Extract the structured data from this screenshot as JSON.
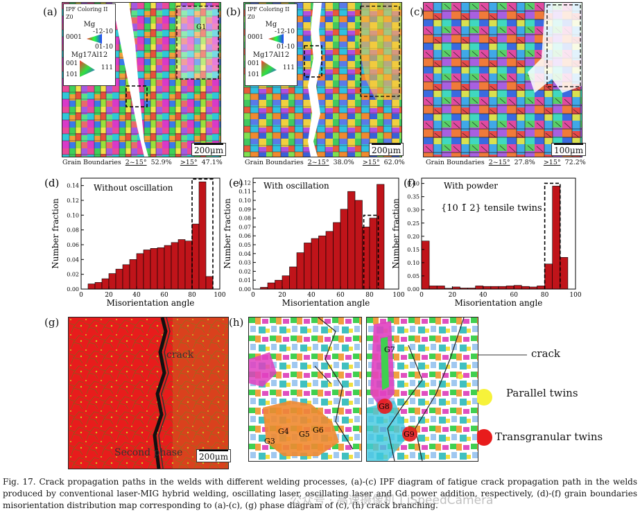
{
  "panels": {
    "a": {
      "label": "(a)",
      "scale": "200μm",
      "gb": {
        "title": "Grain Boundaries",
        "low": "2~15°",
        "low_pct": "52.9%",
        "high": ">15°",
        "high_pct": "47.1%"
      },
      "legend": {
        "title": "IPF Coloring II Z0",
        "phase1": "Mg",
        "p1_top": "-12-10",
        "p1_left": "0001",
        "p1_bot": "01-10",
        "phase2": "Mg17Al12",
        "p2_left_top": "001",
        "p2_right": "111",
        "p2_left_bot": "101"
      },
      "labels": [
        "G1"
      ]
    },
    "b": {
      "label": "(b)",
      "scale": "200μm",
      "gb": {
        "title": "Grain Boundaries",
        "low": "2~15°",
        "low_pct": "38.0%",
        "high": ">15°",
        "high_pct": "62.0%"
      },
      "legend": {
        "title": "IPF Coloring II Z0",
        "phase1": "Mg",
        "p1_top": "-12-10",
        "p1_left": "0001",
        "p1_bot": "01-10",
        "phase2": "Mg17Al12",
        "p2_left_top": "001",
        "p2_right": "111",
        "p2_left_bot": "101"
      }
    },
    "c": {
      "label": "(c)",
      "scale": "100μm",
      "gb": {
        "title": "Grain Boundaries",
        "low": "2~15°",
        "low_pct": "27.8%",
        "high": ">15°",
        "high_pct": "72.2%"
      }
    },
    "g": {
      "label": "(g)",
      "crack": "crack",
      "second_phase": "Second phase",
      "scale": "200μm"
    },
    "h": {
      "label": "(h)",
      "grains_left": [
        "G3",
        "G4",
        "G5",
        "G6"
      ],
      "grains_right": [
        "G7",
        "G8",
        "G9"
      ],
      "legend_crack": "crack",
      "legend_parallel": "Parallel twins",
      "legend_transgranular": "Transgranular twins"
    }
  },
  "chart_data": [
    {
      "id": "d",
      "label": "(d)",
      "type": "bar",
      "annotation": "Without oscillation",
      "xlabel": "Misorientation angle",
      "ylabel": "Number fraction",
      "xlim": [
        0,
        100
      ],
      "ylim": [
        0,
        0.15
      ],
      "xticks": [
        "0",
        "20",
        "40",
        "60",
        "80",
        "100"
      ],
      "yticks": [
        "0.00",
        "0.02",
        "0.04",
        "0.06",
        "0.08",
        "0.10",
        "0.12",
        "0.14"
      ],
      "x": [
        7.5,
        12.5,
        17.5,
        22.5,
        27.5,
        32.5,
        37.5,
        42.5,
        47.5,
        52.5,
        57.5,
        62.5,
        67.5,
        72.5,
        77.5,
        82.5,
        87.5,
        92.5
      ],
      "values": [
        0.007,
        0.009,
        0.014,
        0.021,
        0.027,
        0.033,
        0.04,
        0.048,
        0.053,
        0.055,
        0.056,
        0.059,
        0.063,
        0.067,
        0.065,
        0.088,
        0.145,
        0.017
      ]
    },
    {
      "id": "e",
      "label": "(e)",
      "type": "bar",
      "annotation": "With oscillation",
      "xlabel": "Misorientation angle",
      "ylabel": "Number fraction",
      "xlim": [
        0,
        100
      ],
      "ylim": [
        0,
        0.125
      ],
      "xticks": [
        "0",
        "20",
        "40",
        "60",
        "80",
        "100"
      ],
      "yticks": [
        "0.00",
        "0.01",
        "0.02",
        "0.03",
        "0.04",
        "0.05",
        "0.06",
        "0.07",
        "0.08",
        "0.09",
        "0.10",
        "0.11",
        "0.12"
      ],
      "x": [
        7.5,
        12.5,
        17.5,
        22.5,
        27.5,
        32.5,
        37.5,
        42.5,
        47.5,
        52.5,
        57.5,
        62.5,
        67.5,
        72.5,
        77.5,
        82.5,
        87.5
      ],
      "values": [
        0.002,
        0.007,
        0.01,
        0.015,
        0.025,
        0.041,
        0.052,
        0.057,
        0.06,
        0.065,
        0.075,
        0.09,
        0.11,
        0.1,
        0.07,
        0.08,
        0.118
      ]
    },
    {
      "id": "f",
      "label": "(f)",
      "type": "bar",
      "annotation": "{10 1̄ 2} tensile twins",
      "annotation_top": "With powder",
      "xlabel": "Misorientation angle",
      "ylabel": "Number fraction",
      "xlim": [
        0,
        100
      ],
      "ylim": [
        0,
        0.42
      ],
      "xticks": [
        "0",
        "20",
        "40",
        "60",
        "80",
        "100"
      ],
      "yticks": [
        "0.00",
        "0.05",
        "0.10",
        "0.15",
        "0.20",
        "0.25",
        "0.30",
        "0.35",
        "0.40"
      ],
      "x": [
        2.5,
        7.5,
        12.5,
        17.5,
        22.5,
        27.5,
        32.5,
        37.5,
        42.5,
        47.5,
        52.5,
        57.5,
        62.5,
        67.5,
        72.5,
        77.5,
        82.5,
        87.5,
        92.5
      ],
      "values": [
        0.182,
        0.012,
        0.012,
        0.003,
        0.008,
        0.004,
        0.004,
        0.012,
        0.01,
        0.01,
        0.01,
        0.012,
        0.014,
        0.01,
        0.008,
        0.012,
        0.095,
        0.39,
        0.12
      ]
    }
  ],
  "caption": "Fig. 17. Crack propagation paths in the welds with different welding processes, (a)-(c) IPF diagram of fatigue crack propagation path in the welds produced by conventional laser-MIG hybrid welding, oscillating laser, oscillating laser and Gd power addition, respectively, (d)-(f) grain boundaries misorientation distribution map corresponding to (a)-(c), (g) phase diagram of (c), (h) crack branching.",
  "watermark": "公众号 · 高速摄像机 | iSpeedCamera",
  "colors": {
    "bar": "#c0141a",
    "crack_red": "#e81c1c",
    "twin_yellow": "#f7f23a"
  }
}
